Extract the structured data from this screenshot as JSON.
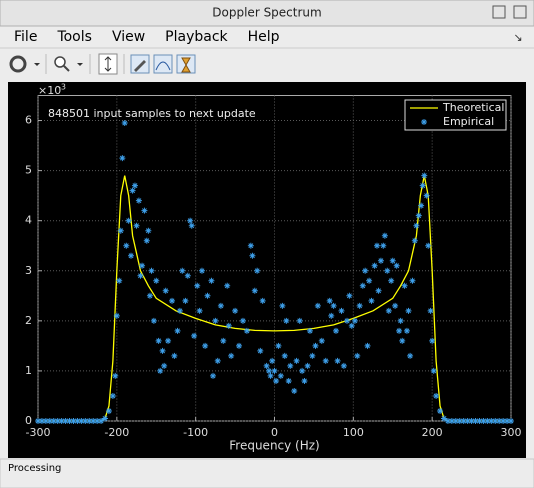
{
  "window": {
    "title": "Doppler Spectrum",
    "menus": [
      "File",
      "Tools",
      "View",
      "Playback",
      "Help"
    ],
    "status": "Processing"
  },
  "chart_data": {
    "type": "scatter_line",
    "annotation": "848501 input samples to next update",
    "xlabel": "Frequency (Hz)",
    "y_multiplier": {
      "base": "×10",
      "power": "-3"
    },
    "xlim": [
      -300,
      300
    ],
    "xticks": [
      -300,
      -200,
      -100,
      0,
      100,
      200,
      300
    ],
    "ylim": [
      0,
      6.5
    ],
    "yticks": [
      0,
      1,
      2,
      3,
      4,
      5,
      6
    ],
    "grid": true,
    "legend": "upper right",
    "series": [
      {
        "name": "Theoretical",
        "color": "#ffff00",
        "style": "line",
        "x": [
          -300,
          -220,
          -215,
          -210,
          -205,
          -200,
          -195,
          -190,
          -185,
          -180,
          -170,
          -160,
          -150,
          -125,
          -100,
          -75,
          -50,
          -25,
          0,
          25,
          50,
          75,
          100,
          125,
          150,
          160,
          170,
          180,
          185,
          190,
          195,
          200,
          205,
          210,
          215,
          220,
          300
        ],
        "values": [
          0,
          0,
          0.05,
          0.3,
          1.2,
          3,
          4.5,
          4.9,
          4.5,
          3.7,
          3.0,
          2.7,
          2.45,
          2.2,
          2.05,
          1.92,
          1.85,
          1.81,
          1.8,
          1.81,
          1.85,
          1.92,
          2.05,
          2.2,
          2.45,
          2.7,
          3.0,
          3.7,
          4.5,
          4.9,
          4.5,
          3,
          1.2,
          0.3,
          0.05,
          0,
          0
        ]
      },
      {
        "name": "Empirical",
        "color": "#3d9ee8",
        "style": "asterisk",
        "x": [
          -300,
          -295,
          -290,
          -285,
          -280,
          -275,
          -270,
          -265,
          -260,
          -255,
          -250,
          -245,
          -240,
          -235,
          -230,
          -225,
          -220,
          -215,
          -210,
          -205,
          -202,
          -200,
          -197,
          -195,
          -193,
          -190,
          -188,
          -185,
          -182,
          -180,
          -177,
          -175,
          -172,
          -170,
          -168,
          -165,
          -162,
          -160,
          -158,
          -156,
          -153,
          -150,
          -147,
          -145,
          -142,
          -140,
          -138,
          -135,
          -130,
          -127,
          -123,
          -120,
          -117,
          -113,
          -110,
          -107,
          -105,
          -102,
          -98,
          -95,
          -92,
          -88,
          -85,
          -80,
          -78,
          -75,
          -72,
          -68,
          -65,
          -60,
          -58,
          -55,
          -50,
          -45,
          -40,
          -35,
          -30,
          -28,
          -25,
          -22,
          -18,
          -15,
          -10,
          -7,
          -5,
          -3,
          0,
          2,
          5,
          8,
          10,
          13,
          15,
          18,
          20,
          25,
          28,
          32,
          35,
          38,
          42,
          45,
          48,
          52,
          55,
          60,
          65,
          70,
          72,
          75,
          78,
          80,
          85,
          88,
          92,
          95,
          98,
          102,
          105,
          108,
          112,
          115,
          118,
          120,
          123,
          127,
          130,
          132,
          135,
          138,
          140,
          143,
          145,
          148,
          150,
          153,
          155,
          158,
          160,
          162,
          165,
          168,
          170,
          172,
          175,
          178,
          180,
          183,
          186,
          188,
          190,
          193,
          195,
          198,
          200,
          202,
          205,
          210,
          215,
          220,
          225,
          230,
          235,
          240,
          245,
          250,
          255,
          260,
          265,
          270,
          275,
          280,
          285,
          290,
          295,
          300
        ],
        "values": [
          0,
          0,
          0,
          0,
          0,
          0,
          0,
          0,
          0,
          0,
          0,
          0,
          0,
          0,
          0,
          0,
          0,
          0.05,
          0.2,
          0.5,
          0.9,
          2.1,
          2.8,
          3.8,
          5.25,
          5.95,
          3.5,
          4.0,
          3.3,
          4.6,
          4.7,
          3.9,
          4.4,
          2.9,
          3.1,
          4.2,
          3.6,
          3.8,
          2.5,
          3.0,
          2.0,
          2.8,
          1.6,
          1.0,
          1.4,
          1.1,
          2.6,
          1.6,
          2.4,
          1.3,
          1.8,
          2.2,
          3.0,
          2.4,
          2.9,
          4.0,
          3.9,
          1.7,
          2.7,
          2.2,
          3.0,
          1.5,
          2.5,
          2.8,
          0.9,
          2.0,
          1.2,
          2.3,
          1.6,
          2.7,
          1.9,
          1.3,
          2.2,
          1.5,
          2.0,
          1.8,
          3.5,
          3.3,
          2.6,
          3.0,
          1.4,
          2.4,
          1.1,
          1.0,
          0.9,
          1.2,
          1.0,
          0.8,
          1.5,
          0.9,
          2.3,
          1.3,
          2.0,
          0.8,
          1.1,
          0.6,
          1.2,
          2.0,
          1.0,
          0.8,
          1.1,
          1.8,
          1.3,
          1.5,
          2.3,
          1.6,
          1.2,
          2.4,
          2.1,
          2.3,
          1.8,
          1.2,
          2.2,
          1.1,
          2.0,
          2.5,
          1.9,
          2.0,
          1.3,
          2.3,
          2.7,
          3.0,
          1.5,
          2.8,
          2.4,
          3.1,
          3.5,
          2.6,
          3.2,
          3.5,
          3.7,
          3.0,
          2.2,
          2.8,
          3.2,
          2.3,
          3.1,
          1.8,
          2.0,
          1.6,
          2.7,
          1.8,
          2.2,
          1.3,
          2.8,
          3.6,
          3.9,
          4.1,
          4.3,
          4.7,
          4.9,
          4.5,
          3.5,
          2.2,
          1.6,
          1.0,
          0.5,
          0.2,
          0.05,
          0,
          0,
          0,
          0,
          0,
          0,
          0,
          0,
          0,
          0,
          0,
          0,
          0,
          0,
          0,
          0,
          0
        ]
      }
    ]
  }
}
